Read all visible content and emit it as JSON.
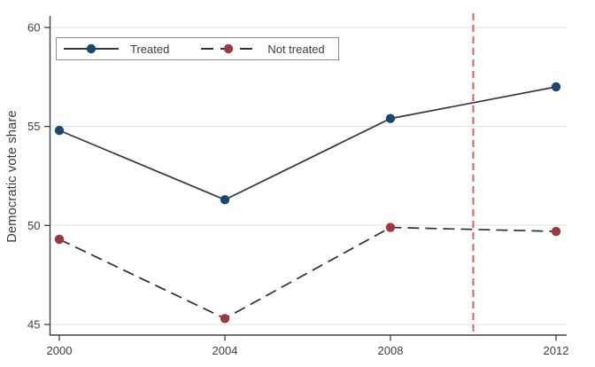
{
  "chart_data": {
    "type": "line",
    "title": "",
    "xlabel": "",
    "ylabel": "Democratic vote share",
    "x": [
      2000,
      2004,
      2008,
      2012
    ],
    "x_ticks": [
      "2000",
      "2004",
      "2008",
      "2012"
    ],
    "y_ticks": [
      45,
      50,
      55,
      60
    ],
    "xlim": [
      1999.8,
      2012.3
    ],
    "ylim": [
      44.5,
      60.6
    ],
    "grid": "horizontal-only",
    "legend_position": "top-left-inside",
    "series": [
      {
        "name": "Treated",
        "values": [
          54.8,
          51.3,
          55.4,
          57.0
        ],
        "line": "solid",
        "line_color": "#2e3744",
        "marker": "circle",
        "marker_color": "#1a476f"
      },
      {
        "name": "Not treated",
        "values": [
          49.3,
          45.3,
          49.9,
          49.7
        ],
        "line": "dashed",
        "line_color": "#2e3138",
        "marker": "circle",
        "marker_color": "#9a3a40"
      }
    ],
    "vline": {
      "x": 2010,
      "color": "#df5c5c",
      "style": "dashed"
    }
  },
  "style": {
    "background": "#ffffff",
    "axis_color": "#404040",
    "grid_color": "#e0e0e0",
    "tick_label_color": "#3d3d3d",
    "legend_border_color": "#8c8c8c"
  }
}
